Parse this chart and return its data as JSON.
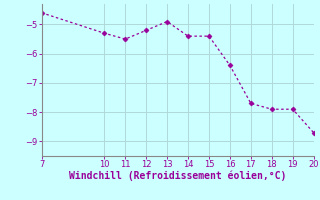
{
  "x": [
    7,
    10,
    11,
    12,
    13,
    14,
    15,
    16,
    17,
    18,
    19,
    20
  ],
  "y": [
    -4.6,
    -5.3,
    -5.5,
    -5.2,
    -4.9,
    -5.4,
    -5.4,
    -6.4,
    -7.7,
    -7.9,
    -7.9,
    -8.7
  ],
  "line_color": "#990099",
  "marker": "D",
  "marker_size": 2.5,
  "bg_color": "#ccffff",
  "grid_color": "#b0d8d8",
  "xlabel": "Windchill (Refroidissement éolien,°C)",
  "xlabel_color": "#990099",
  "tick_color": "#990099",
  "spine_color": "#888888",
  "xlim": [
    7,
    20
  ],
  "ylim": [
    -9.5,
    -4.3
  ],
  "yticks": [
    -9,
    -8,
    -7,
    -6,
    -5
  ],
  "xticks": [
    7,
    10,
    11,
    12,
    13,
    14,
    15,
    16,
    17,
    18,
    19,
    20
  ],
  "tick_labelsize": 6,
  "xlabel_fontsize": 7,
  "linewidth": 0.9
}
